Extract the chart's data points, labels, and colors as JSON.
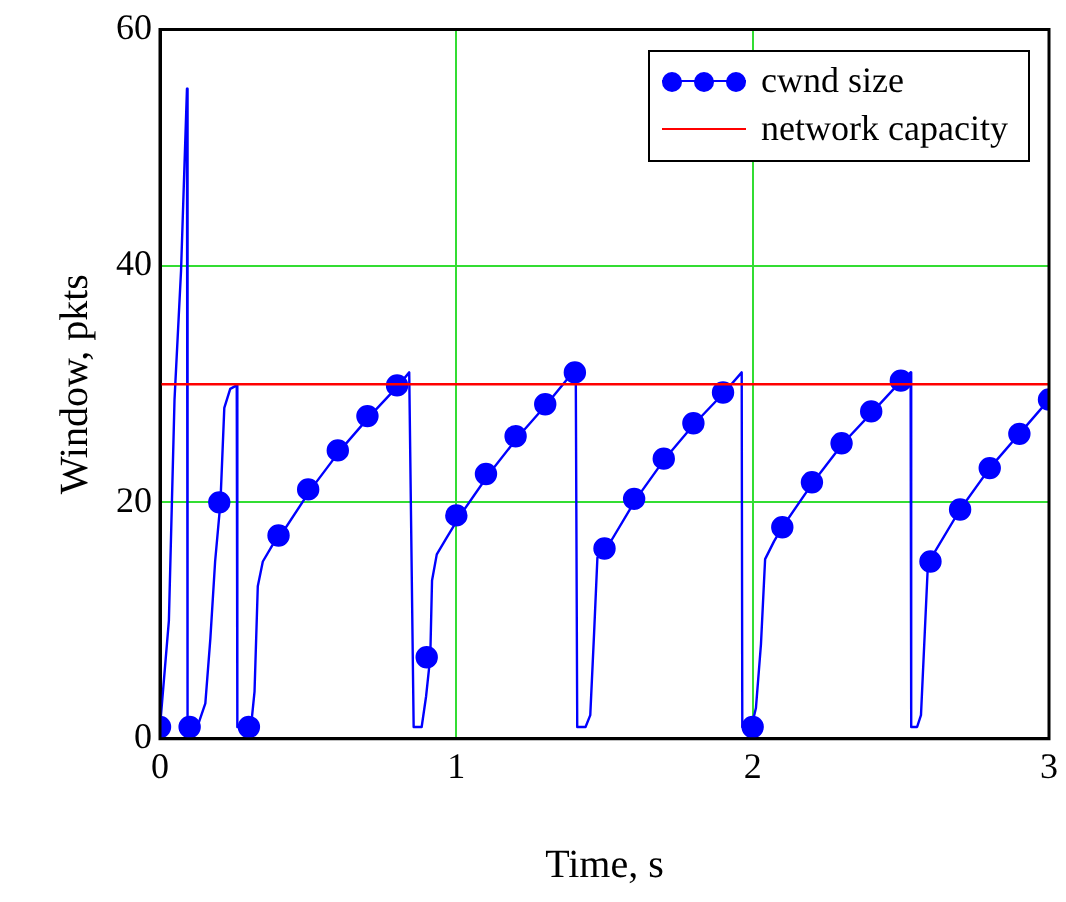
{
  "chart_data": {
    "type": "line",
    "xlabel": "Time, s",
    "ylabel": "Window, pkts",
    "xlim": [
      0,
      3
    ],
    "xticks": [
      0,
      1,
      2,
      3
    ],
    "ylim": [
      0,
      60
    ],
    "yticks": [
      0,
      20,
      40,
      60
    ],
    "grid": true,
    "legend": "top right",
    "series": [
      {
        "color": "#0000ff",
        "marker": "none",
        "x": [
          0,
          0.03,
          0.049,
          0.071,
          0.091,
          0.093,
          0.126,
          0.153,
          0.17,
          0.186,
          0.204,
          0.217,
          0.237,
          0.259,
          0.261,
          0.288,
          0.307,
          0.319,
          0.33,
          0.347,
          0.38,
          0.407,
          0.509,
          0.608,
          0.708,
          0.805,
          0.841,
          0.856,
          0.883,
          0.898,
          0.912,
          0.918,
          0.934,
          0.967,
          1.013,
          1.11,
          1.21,
          1.305,
          1.403,
          1.408,
          1.436,
          1.452,
          1.465,
          1.476,
          1.507,
          1.607,
          1.704,
          1.805,
          1.904,
          1.963,
          1.965,
          1.996,
          2.011,
          2.028,
          2.042,
          2.072,
          2.1,
          2.204,
          2.305,
          2.406,
          2.502,
          2.533,
          2.535,
          2.555,
          2.568,
          2.581,
          2.592,
          2.6,
          2.7,
          2.8,
          2.9,
          3.0
        ],
        "values": [
          1,
          10,
          28.7,
          39.6,
          55,
          1,
          1,
          3,
          8.5,
          15,
          20,
          28,
          29.6,
          29.9,
          1,
          1,
          1,
          4,
          12.9,
          15,
          16.4,
          17.2,
          21.1,
          24.4,
          27.3,
          29.9,
          31,
          1,
          1,
          3.6,
          6.9,
          13.4,
          15.6,
          17,
          18.9,
          22.4,
          25.6,
          28.3,
          31.3,
          1,
          1,
          2,
          9,
          15.3,
          16.1,
          20.3,
          23.7,
          26.7,
          29.3,
          31,
          1,
          1,
          2.6,
          8,
          15.2,
          16.7,
          17.9,
          21.7,
          25,
          27.7,
          30.3,
          31,
          1,
          1,
          2,
          9.1,
          15.1,
          15.2,
          19.4,
          22.9,
          25.8,
          28.7
        ]
      },
      {
        "type": "scatter",
        "name": "cwnd size",
        "color": "#0000ff",
        "marker": "circle",
        "x": [
          0,
          0.1,
          0.2,
          0.3,
          0.4,
          0.5,
          0.6,
          0.7,
          0.8,
          0.9,
          1.0,
          1.1,
          1.2,
          1.3,
          1.4,
          1.5,
          1.6,
          1.7,
          1.8,
          1.9,
          2.0,
          2.1,
          2.2,
          2.3,
          2.4,
          2.5,
          2.6,
          2.7,
          2.8,
          2.9,
          3.0
        ],
        "values": [
          1,
          1,
          20,
          1,
          17.2,
          21.1,
          24.4,
          27.3,
          29.9,
          6.9,
          18.9,
          22.4,
          25.6,
          28.3,
          31,
          16.1,
          20.3,
          23.7,
          26.7,
          29.3,
          1,
          17.9,
          21.7,
          25,
          27.7,
          30.3,
          15,
          19.4,
          22.9,
          25.8,
          28.7
        ]
      }
    ],
    "ref_lines": [
      {
        "axis": "y",
        "value": 30,
        "label": "network capacity",
        "color": "#ff0000",
        "line_style": "solid"
      }
    ]
  }
}
